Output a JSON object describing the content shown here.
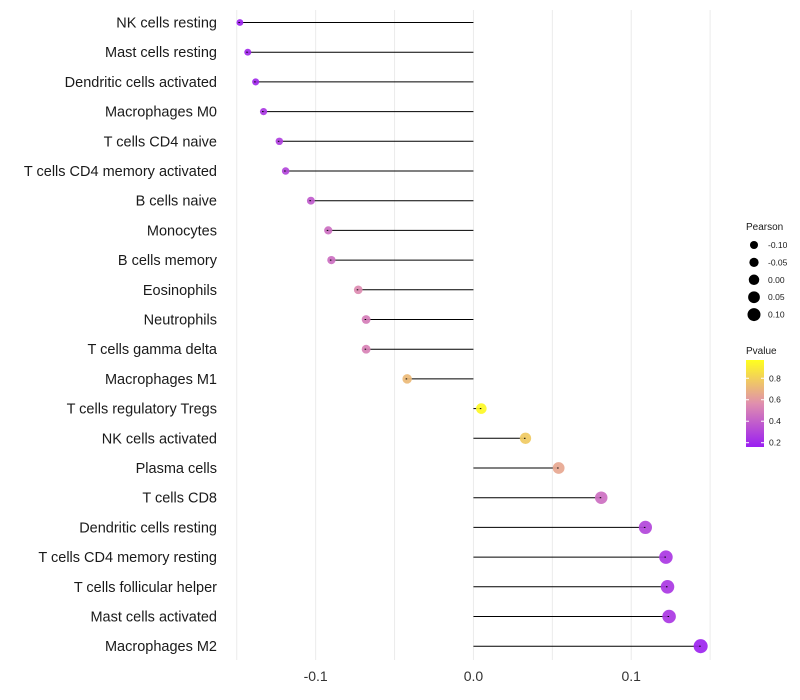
{
  "chart_data": {
    "type": "lollipop",
    "title": "",
    "xlabel": "",
    "ylabel": "",
    "xlim": [
      -0.153,
      0.155
    ],
    "x_ticks": [
      -0.1,
      0.0,
      0.1
    ],
    "x_tick_labels": [
      "-0.1",
      "0.0",
      "0.1"
    ],
    "grid": true,
    "categories": [
      "NK cells resting",
      "Mast cells resting",
      "Dendritic cells activated",
      "Macrophages M0",
      "T cells CD4 naive",
      "T cells CD4 memory activated",
      "B cells naive",
      "Monocytes",
      "B cells memory",
      "Eosinophils",
      "Neutrophils",
      "T cells gamma delta",
      "Macrophages M1",
      "T cells regulatory  Tregs ",
      "NK cells activated",
      "Plasma cells",
      "T cells CD8",
      "Dendritic cells resting",
      "T cells CD4 memory resting",
      "T cells follicular helper",
      "Mast cells activated",
      "Macrophages M2"
    ],
    "pearson": [
      -0.148,
      -0.143,
      -0.138,
      -0.133,
      -0.123,
      -0.119,
      -0.103,
      -0.092,
      -0.09,
      -0.073,
      -0.068,
      -0.068,
      -0.042,
      0.005,
      0.033,
      0.054,
      0.081,
      0.109,
      0.122,
      0.123,
      0.124,
      0.144
    ],
    "pvalue": [
      0.18,
      0.2,
      0.2,
      0.25,
      0.28,
      0.3,
      0.38,
      0.45,
      0.45,
      0.55,
      0.5,
      0.52,
      0.72,
      0.95,
      0.78,
      0.65,
      0.45,
      0.3,
      0.25,
      0.25,
      0.25,
      0.18
    ],
    "legend": {
      "size_title": "Pearson",
      "size_breaks": [
        -0.1,
        -0.05,
        0.0,
        0.05,
        0.1
      ],
      "size_labels": [
        "-0.10",
        "-0.05",
        "0.00",
        "0.05",
        "0.10"
      ],
      "color_title": "Pvalue",
      "color_range": [
        0.16,
        0.97
      ],
      "color_breaks": [
        0.2,
        0.4,
        0.6,
        0.8
      ],
      "color_labels": [
        "0.2",
        "0.4",
        "0.6",
        "0.8"
      ],
      "position": "right"
    },
    "colors": {
      "low": "#9a1ef2",
      "mid": "#e08fae",
      "high": "#ffff1e",
      "stem": "#000000",
      "grid": "#ebebeb"
    }
  }
}
